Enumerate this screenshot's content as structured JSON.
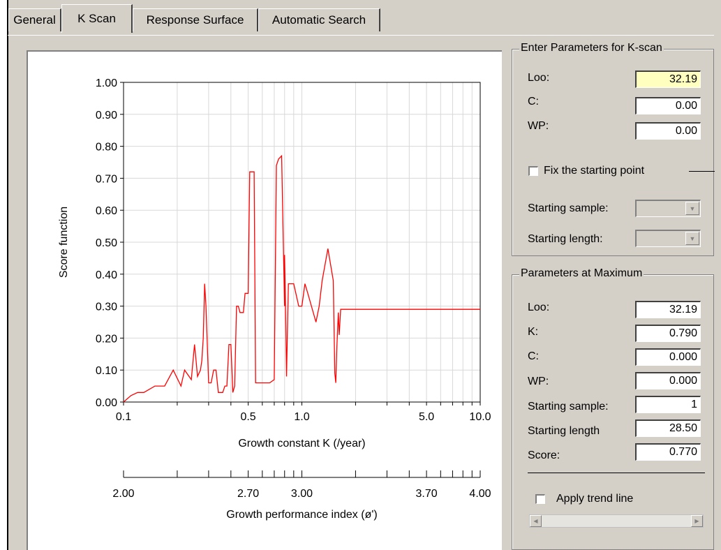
{
  "tabs": [
    {
      "label": "General"
    },
    {
      "label": "K Scan"
    },
    {
      "label": "Response Surface"
    },
    {
      "label": "Automatic Search"
    }
  ],
  "colors": {
    "line": "#ff0000",
    "highlight": "#ffffc0"
  },
  "enter_params": {
    "title": "Enter Parameters for K-scan",
    "loo_label": "Loo:",
    "loo_value": "32.19",
    "c_label": "C:",
    "c_value": "0.00",
    "wp_label": "WP:",
    "wp_value": "0.00",
    "fix_label": "Fix the starting point",
    "start_sample_label": "Starting sample:",
    "start_length_label": "Starting length:"
  },
  "max_params": {
    "title": "Parameters at Maximum",
    "loo_label": "Loo:",
    "loo_value": "32.19",
    "k_label": "K:",
    "k_value": "0.790",
    "c_label": "C:",
    "c_value": "0.000",
    "wp_label": "WP:",
    "wp_value": "0.000",
    "sample_label": "Starting sample:",
    "sample_value": "1",
    "length_label": "Starting length",
    "length_value": "28.50",
    "score_label": "Score:",
    "score_value": "0.770",
    "trend_label": "Apply trend line"
  },
  "chart_data": {
    "type": "line",
    "ylabel": "Score function",
    "xlabel": "Growth constant K (/year)",
    "x2label": "Growth performance index (ø')",
    "xscale": "log",
    "xlim": [
      0.1,
      10.0
    ],
    "ylim": [
      0.0,
      1.0
    ],
    "yticks": [
      "0.00",
      "0.10",
      "0.20",
      "0.30",
      "0.40",
      "0.50",
      "0.60",
      "0.70",
      "0.80",
      "0.90",
      "1.00"
    ],
    "xtick_labels": [
      {
        "v": 0.1,
        "label": "0.1"
      },
      {
        "v": 0.5,
        "label": "0.5"
      },
      {
        "v": 1.0,
        "label": "1.0"
      },
      {
        "v": 5.0,
        "label": "5.0"
      },
      {
        "v": 10.0,
        "label": "10.0"
      }
    ],
    "x2tick_labels": [
      {
        "v": 0.1,
        "label": "2.00"
      },
      {
        "v": 0.5,
        "label": "2.70"
      },
      {
        "v": 1.0,
        "label": "3.00"
      },
      {
        "v": 5.0,
        "label": "3.70"
      },
      {
        "v": 10.0,
        "label": "4.00"
      }
    ],
    "grid": true,
    "series": [
      {
        "x": [
          0.1,
          0.11,
          0.12,
          0.13,
          0.15,
          0.17,
          0.19,
          0.21,
          0.22,
          0.24,
          0.25,
          0.255,
          0.26,
          0.27,
          0.275,
          0.28,
          0.285,
          0.29,
          0.3,
          0.31,
          0.32,
          0.33,
          0.34,
          0.35,
          0.36,
          0.37,
          0.38,
          0.39,
          0.4,
          0.41,
          0.42,
          0.43,
          0.44,
          0.45,
          0.47,
          0.48,
          0.5,
          0.51,
          0.52,
          0.54,
          0.55,
          0.6,
          0.62,
          0.66,
          0.7,
          0.72,
          0.74,
          0.77,
          0.8,
          0.8,
          0.81,
          0.82,
          0.84,
          0.86,
          0.88,
          0.9,
          0.96,
          1.0,
          1.04,
          1.08,
          1.2,
          1.25,
          1.3,
          1.4,
          1.5,
          1.53,
          1.55,
          1.57,
          1.6,
          1.62,
          1.65,
          1.7,
          10.0
        ],
        "y": [
          0.0,
          0.02,
          0.03,
          0.03,
          0.05,
          0.05,
          0.1,
          0.05,
          0.1,
          0.07,
          0.18,
          0.13,
          0.08,
          0.1,
          0.13,
          0.2,
          0.37,
          0.3,
          0.06,
          0.06,
          0.1,
          0.1,
          0.03,
          0.03,
          0.03,
          0.05,
          0.05,
          0.18,
          0.18,
          0.03,
          0.05,
          0.3,
          0.3,
          0.28,
          0.28,
          0.34,
          0.34,
          0.72,
          0.72,
          0.72,
          0.06,
          0.06,
          0.06,
          0.06,
          0.07,
          0.74,
          0.76,
          0.77,
          0.3,
          0.46,
          0.3,
          0.08,
          0.37,
          0.37,
          0.37,
          0.37,
          0.3,
          0.3,
          0.37,
          0.34,
          0.25,
          0.3,
          0.38,
          0.48,
          0.38,
          0.09,
          0.06,
          0.17,
          0.28,
          0.21,
          0.29,
          0.29,
          0.29
        ]
      }
    ]
  }
}
